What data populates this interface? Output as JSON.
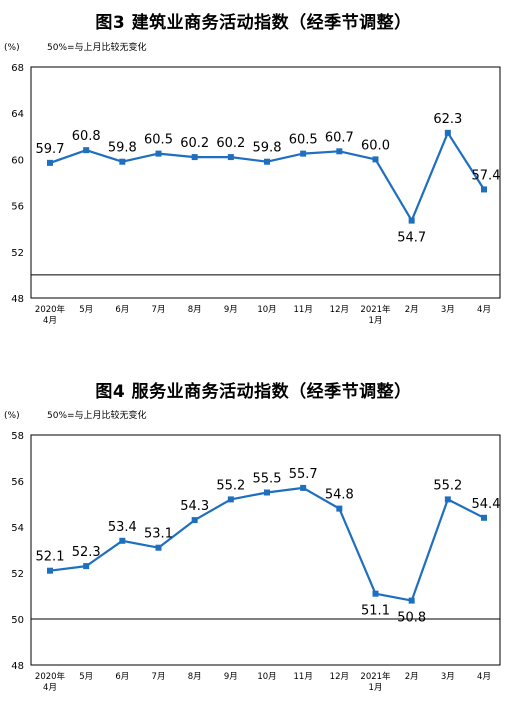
{
  "chart_data": [
    {
      "type": "line",
      "title": "图3  建筑业商务活动指数（经季节调整）",
      "unit": "(%)",
      "note": "50%=与上月比较无变化",
      "categories": [
        "2020年4月",
        "5月",
        "6月",
        "7月",
        "8月",
        "9月",
        "10月",
        "11月",
        "12月",
        "2021年1月",
        "2月",
        "3月",
        "4月"
      ],
      "category_lines": [
        [
          "2020年",
          "4月"
        ],
        [
          "5月"
        ],
        [
          "6月"
        ],
        [
          "7月"
        ],
        [
          "8月"
        ],
        [
          "9月"
        ],
        [
          "10月"
        ],
        [
          "11月"
        ],
        [
          "12月"
        ],
        [
          "2021年",
          "1月"
        ],
        [
          "2月"
        ],
        [
          "3月"
        ],
        [
          "4月"
        ]
      ],
      "series": [
        {
          "values": [
            59.7,
            60.8,
            59.8,
            60.5,
            60.2,
            60.2,
            59.8,
            60.5,
            60.7,
            60.0,
            54.7,
            62.3,
            57.4
          ]
        }
      ],
      "value_labels": [
        "59.7",
        "60.8",
        "59.8",
        "60.5",
        "60.2",
        "60.2",
        "59.8",
        "60.5",
        "60.7",
        "60.0",
        "54.7",
        "62.3",
        "57.4"
      ],
      "label_below": [
        false,
        false,
        false,
        false,
        false,
        false,
        false,
        false,
        false,
        false,
        true,
        false,
        false
      ],
      "yticks": [
        48,
        52,
        56,
        60,
        64,
        68
      ],
      "ylim": [
        48,
        68
      ],
      "reference_line": 50,
      "line_color": "#1f6fc0"
    },
    {
      "type": "line",
      "title": "图4  服务业商务活动指数（经季节调整）",
      "unit": "(%)",
      "note": "50%=与上月比较无变化",
      "categories": [
        "2020年4月",
        "5月",
        "6月",
        "7月",
        "8月",
        "9月",
        "10月",
        "11月",
        "12月",
        "2021年1月",
        "2月",
        "3月",
        "4月"
      ],
      "category_lines": [
        [
          "2020年",
          "4月"
        ],
        [
          "5月"
        ],
        [
          "6月"
        ],
        [
          "7月"
        ],
        [
          "8月"
        ],
        [
          "9月"
        ],
        [
          "10月"
        ],
        [
          "11月"
        ],
        [
          "12月"
        ],
        [
          "2021年",
          "1月"
        ],
        [
          "2月"
        ],
        [
          "3月"
        ],
        [
          "4月"
        ]
      ],
      "series": [
        {
          "values": [
            52.1,
            52.3,
            53.4,
            53.1,
            54.3,
            55.2,
            55.5,
            55.7,
            54.8,
            51.1,
            50.8,
            55.2,
            54.4
          ]
        }
      ],
      "value_labels": [
        "52.1",
        "52.3",
        "53.4",
        "53.1",
        "54.3",
        "55.2",
        "55.5",
        "55.7",
        "54.8",
        "51.1",
        "50.8",
        "55.2",
        "54.4"
      ],
      "label_below": [
        false,
        false,
        false,
        false,
        false,
        false,
        false,
        false,
        false,
        true,
        true,
        false,
        false
      ],
      "yticks": [
        48,
        50,
        52,
        54,
        56,
        58
      ],
      "ylim": [
        48,
        58
      ],
      "reference_line": 50,
      "line_color": "#1f6fc0"
    }
  ]
}
